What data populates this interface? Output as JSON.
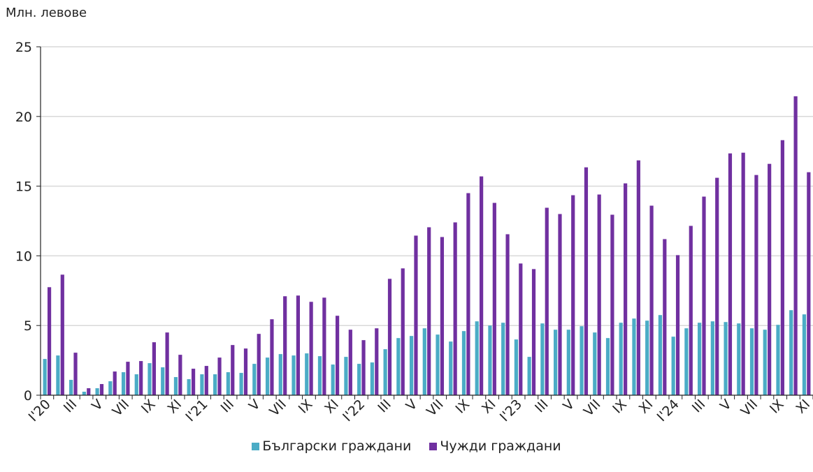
{
  "chart_data": {
    "type": "bar",
    "ylabel": "Млн. левове",
    "ylim": [
      0,
      25
    ],
    "yticks": [
      0,
      5,
      10,
      15,
      20,
      25
    ],
    "grid": true,
    "legend_position": "bottom",
    "categories": [
      "I'20",
      "II",
      "III",
      "IV",
      "V",
      "VI",
      "VII",
      "VIII",
      "IX",
      "X",
      "XI",
      "XII",
      "I'21",
      "II",
      "III",
      "IV",
      "V",
      "VI",
      "VII",
      "VIII",
      "IX",
      "X",
      "XI",
      "XII",
      "I'22",
      "II",
      "III",
      "IV",
      "V",
      "VI",
      "VII",
      "VIII",
      "IX",
      "X",
      "XI",
      "XII",
      "I'23",
      "II",
      "III",
      "IV",
      "V",
      "VI",
      "VII",
      "VIII",
      "IX",
      "X",
      "XI",
      "XII",
      "I'24",
      "II",
      "III",
      "IV",
      "V",
      "VI",
      "VII",
      "VIII",
      "IX",
      "X",
      "XI"
    ],
    "tick_labels": [
      "I'20",
      "III",
      "V",
      "VII",
      "IX",
      "XI",
      "I'21",
      "III",
      "V",
      "VII",
      "IX",
      "XI",
      "I'22",
      "III",
      "V",
      "VII",
      "IX",
      "XI",
      "I'23",
      "III",
      "V",
      "VII",
      "IX",
      "XI",
      "I'24",
      "III",
      "V",
      "VII",
      "IX",
      "XI"
    ],
    "series": [
      {
        "name": "Български граждани",
        "color": "#4bacc6",
        "values": [
          2.6,
          2.85,
          1.1,
          0.25,
          0.5,
          1.0,
          1.65,
          1.5,
          2.3,
          2.0,
          1.3,
          1.15,
          1.5,
          1.5,
          1.65,
          1.6,
          2.25,
          2.7,
          2.95,
          2.85,
          3.0,
          2.8,
          2.2,
          2.75,
          2.25,
          2.35,
          3.3,
          4.1,
          4.25,
          4.8,
          4.35,
          3.85,
          4.6,
          5.3,
          5.0,
          5.2,
          4.0,
          2.75,
          5.15,
          4.7,
          4.7,
          4.95,
          4.5,
          4.1,
          5.2,
          5.5,
          5.35,
          5.75,
          4.2,
          4.8,
          5.2,
          5.3,
          5.25,
          5.15,
          4.8,
          4.7,
          5.05,
          6.1,
          5.8
        ]
      },
      {
        "name": "Чужди граждани",
        "color": "#7030a0",
        "values": [
          7.75,
          8.65,
          3.05,
          0.5,
          0.8,
          1.7,
          2.4,
          2.45,
          3.8,
          4.5,
          2.9,
          1.9,
          2.1,
          2.7,
          3.6,
          3.35,
          4.4,
          5.45,
          7.1,
          7.15,
          6.7,
          7.0,
          5.7,
          4.7,
          3.95,
          4.8,
          8.35,
          9.1,
          11.45,
          12.05,
          11.35,
          12.4,
          14.5,
          15.7,
          13.8,
          11.55,
          9.45,
          9.05,
          13.45,
          13.0,
          14.35,
          16.35,
          14.4,
          12.95,
          15.2,
          16.85,
          13.6,
          11.2,
          10.05,
          12.15,
          14.25,
          15.6,
          17.35,
          17.4,
          15.8,
          16.6,
          18.3,
          21.45,
          16.0
        ]
      }
    ]
  }
}
